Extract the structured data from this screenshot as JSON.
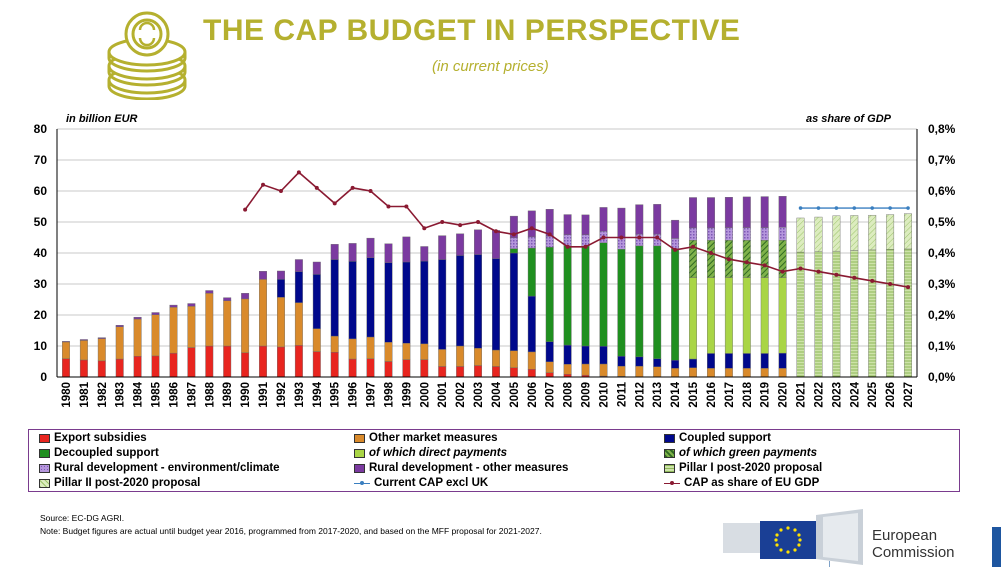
{
  "header": {
    "title": "THE CAP BUDGET IN PERSPECTIVE",
    "subtitle": "(in current prices)",
    "icon": "coins-icon"
  },
  "chart_data": {
    "type": "bar",
    "stacked": true,
    "left_axis_label": "in billion EUR",
    "right_axis_label": "as share of  GDP",
    "ylim": [
      0,
      80
    ],
    "y_ticks": [
      "0",
      "10",
      "20",
      "30",
      "40",
      "50",
      "60",
      "70",
      "80"
    ],
    "y2lim": [
      0,
      0.8
    ],
    "y2_ticks": [
      "0,0%",
      "0,1%",
      "0,2%",
      "0,3%",
      "0,4%",
      "0,5%",
      "0,6%",
      "0,7%",
      "0,8%"
    ],
    "grid": true,
    "categories": [
      "1980",
      "1981",
      "1982",
      "1983",
      "1984",
      "1985",
      "1986",
      "1987",
      "1988",
      "1989",
      "1990",
      "1991",
      "1992",
      "1993",
      "1994",
      "1995",
      "1996",
      "1997",
      "1998",
      "1999",
      "2000",
      "2001",
      "2002",
      "2003",
      "2004",
      "2005",
      "2006",
      "2007",
      "2008",
      "2009",
      "2010",
      "2011",
      "2012",
      "2013",
      "2014",
      "2015",
      "2016",
      "2017",
      "2018",
      "2019",
      "2020",
      "2021",
      "2022",
      "2023",
      "2024",
      "2025",
      "2026",
      "2027"
    ],
    "series": [
      {
        "name": "Export subsidies",
        "color": "#e8251f",
        "pattern": "solid",
        "values": [
          5.9,
          5.5,
          5.2,
          5.8,
          6.7,
          6.8,
          7.7,
          9.5,
          10.0,
          10.0,
          7.8,
          10.0,
          9.7,
          10.2,
          8.2,
          8.0,
          5.8,
          5.9,
          5.0,
          5.6,
          5.6,
          3.4,
          3.4,
          3.7,
          3.4,
          3.0,
          2.5,
          1.4,
          0.9,
          0.6,
          0.3,
          0.2,
          0.1,
          0.1,
          0.0,
          0.0,
          0.0,
          0.0,
          0.0,
          0.0,
          0,
          0,
          0,
          0,
          0,
          0,
          0,
          0
        ]
      },
      {
        "name": "Other market measures",
        "color": "#d98a2b",
        "pattern": "solid",
        "values": [
          5.4,
          6.3,
          7.2,
          10.4,
          12.0,
          13.3,
          14.8,
          13.3,
          17.0,
          14.6,
          17.4,
          21.5,
          16.0,
          13.8,
          7.4,
          5.2,
          6.5,
          7.0,
          6.2,
          5.3,
          5.1,
          5.5,
          6.6,
          5.6,
          5.3,
          5.5,
          5.6,
          3.5,
          3.2,
          3.6,
          3.9,
          3.3,
          3.4,
          3.2,
          2.8,
          3.0,
          2.8,
          2.8,
          2.8,
          2.8,
          2.8,
          0,
          0,
          0,
          0,
          0,
          0,
          0
        ]
      },
      {
        "name": "Coupled support",
        "color": "#00088c",
        "pattern": "solid",
        "values": [
          0,
          0,
          0,
          0,
          0,
          0,
          0,
          0,
          0,
          0,
          0,
          0,
          5.8,
          10.0,
          17.5,
          24.7,
          25.0,
          25.6,
          25.7,
          26.2,
          26.7,
          29.0,
          29.2,
          30.2,
          29.5,
          31.5,
          18.0,
          6.5,
          6.2,
          5.8,
          5.7,
          3.2,
          3.0,
          2.6,
          2.6,
          2.8,
          4.8,
          4.8,
          4.8,
          4.8,
          4.9,
          0,
          0,
          0,
          0,
          0,
          0,
          0
        ]
      },
      {
        "name": "Decoupled support",
        "color": "#1f8f1f",
        "pattern": "solid",
        "values": [
          0,
          0,
          0,
          0,
          0,
          0,
          0,
          0,
          0,
          0,
          0,
          0,
          0,
          0,
          0,
          0,
          0,
          0,
          0,
          0,
          0,
          0,
          0,
          0,
          0,
          1.4,
          15.5,
          30.5,
          32.0,
          32.2,
          33.4,
          34.5,
          35.8,
          36.4,
          36.0,
          0,
          0,
          0,
          0,
          0,
          0,
          0,
          0,
          0,
          0,
          0,
          0,
          0
        ]
      },
      {
        "name": "of which direct payments",
        "color": "#a9d545",
        "pattern": "solid",
        "values": [
          0,
          0,
          0,
          0,
          0,
          0,
          0,
          0,
          0,
          0,
          0,
          0,
          0,
          0,
          0,
          0,
          0,
          0,
          0,
          0,
          0,
          0,
          0,
          0,
          0,
          0,
          0,
          0,
          0,
          0,
          0,
          0,
          0,
          0,
          0,
          26.3,
          24.5,
          24.5,
          24.5,
          24.5,
          24.4,
          0,
          0,
          0,
          0,
          0,
          0,
          0
        ]
      },
      {
        "name": "of which green payments",
        "color": "#4a8a32",
        "pattern": "hatch",
        "values": [
          0,
          0,
          0,
          0,
          0,
          0,
          0,
          0,
          0,
          0,
          0,
          0,
          0,
          0,
          0,
          0,
          0,
          0,
          0,
          0,
          0,
          0,
          0,
          0,
          0,
          0,
          0,
          0,
          0,
          0,
          0,
          0,
          0,
          0,
          0,
          12.0,
          12.0,
          12.0,
          12.0,
          12.0,
          12.0,
          0,
          0,
          0,
          0,
          0,
          0,
          0
        ]
      },
      {
        "name": "Rural development - environment/climate",
        "color": "#a47bd1",
        "pattern": "dots",
        "values": [
          0,
          0,
          0,
          0,
          0,
          0,
          0,
          0,
          0,
          0,
          0,
          0,
          0,
          0,
          0,
          0,
          0,
          0,
          0,
          0,
          0,
          0,
          0,
          0,
          0,
          3.5,
          3.6,
          3.5,
          3.6,
          3.7,
          3.7,
          3.8,
          3.8,
          3.8,
          3.3,
          4.0,
          4.0,
          4.1,
          4.1,
          4.1,
          4.2,
          0,
          0,
          0,
          0,
          0,
          0,
          0
        ]
      },
      {
        "name": "Rural development - other measures",
        "color": "#7b3aa0",
        "pattern": "solid",
        "values": [
          0.2,
          0.3,
          0.3,
          0.5,
          0.6,
          0.7,
          0.7,
          0.9,
          0.9,
          1.0,
          1.8,
          2.6,
          2.7,
          3.9,
          4.0,
          4.9,
          5.8,
          6.3,
          6.1,
          8.1,
          4.7,
          7.7,
          7.0,
          8.0,
          9.1,
          7.0,
          8.4,
          8.7,
          6.5,
          6.4,
          7.7,
          9.5,
          9.5,
          9.6,
          5.9,
          9.8,
          9.8,
          9.8,
          9.9,
          10.0,
          10.0,
          0,
          0,
          0,
          0,
          0,
          0,
          0
        ]
      },
      {
        "name": "Pillar I post-2020 proposal",
        "color": "#b8d88c",
        "pattern": "hstripe",
        "values": [
          0,
          0,
          0,
          0,
          0,
          0,
          0,
          0,
          0,
          0,
          0,
          0,
          0,
          0,
          0,
          0,
          0,
          0,
          0,
          0,
          0,
          0,
          0,
          0,
          0,
          0,
          0,
          0,
          0,
          0,
          0,
          0,
          0,
          0,
          0,
          0,
          0,
          0,
          0,
          0,
          0,
          40.3,
          40.4,
          40.6,
          40.8,
          41.0,
          41.2,
          41.3
        ]
      },
      {
        "name": "Pillar II post-2020 proposal",
        "color": "#d3e6b0",
        "pattern": "hatch2",
        "values": [
          0,
          0,
          0,
          0,
          0,
          0,
          0,
          0,
          0,
          0,
          0,
          0,
          0,
          0,
          0,
          0,
          0,
          0,
          0,
          0,
          0,
          0,
          0,
          0,
          0,
          0,
          0,
          0,
          0,
          0,
          0,
          0,
          0,
          0,
          0,
          0,
          0,
          0,
          0,
          0,
          0,
          11.0,
          11.2,
          11.4,
          11.3,
          11.2,
          11.2,
          11.4
        ]
      }
    ],
    "lines": [
      {
        "name": "Current CAP excl UK",
        "color": "#3a7fc0",
        "axis": "left",
        "values": [
          null,
          null,
          null,
          null,
          null,
          null,
          null,
          null,
          null,
          null,
          null,
          null,
          null,
          null,
          null,
          null,
          null,
          null,
          null,
          null,
          null,
          null,
          null,
          null,
          null,
          null,
          null,
          null,
          null,
          null,
          null,
          null,
          null,
          null,
          null,
          null,
          null,
          null,
          null,
          null,
          null,
          54.5,
          54.5,
          54.5,
          54.5,
          54.5,
          54.5,
          54.5
        ]
      },
      {
        "name": "CAP as share of EU GDP",
        "color": "#8a1a32",
        "axis": "right",
        "values": [
          null,
          null,
          null,
          null,
          null,
          null,
          null,
          null,
          null,
          null,
          0.54,
          0.62,
          0.6,
          0.66,
          0.61,
          0.56,
          0.61,
          0.6,
          0.55,
          0.55,
          0.48,
          0.5,
          0.49,
          0.5,
          0.47,
          0.46,
          0.48,
          0.46,
          0.42,
          0.42,
          0.45,
          0.45,
          0.45,
          0.45,
          0.41,
          0.42,
          0.4,
          0.38,
          0.37,
          0.36,
          0.34,
          0.35,
          0.34,
          0.33,
          0.32,
          0.31,
          0.3,
          0.29
        ]
      }
    ]
  },
  "legend": {
    "items": [
      {
        "label": "Export subsidies",
        "italic": false
      },
      {
        "label": "Other market measures",
        "italic": false
      },
      {
        "label": "Coupled support",
        "italic": false
      },
      {
        "label": "Decoupled support",
        "italic": false
      },
      {
        "label": "of which direct payments",
        "italic": true
      },
      {
        "label": "of which green payments",
        "italic": true
      },
      {
        "label": "Rural development - environment/climate",
        "italic": false
      },
      {
        "label": "Rural development - other measures",
        "italic": false
      },
      {
        "label": "Pillar I post-2020 proposal",
        "italic": false
      },
      {
        "label": "Pillar II post-2020 proposal",
        "italic": false
      },
      {
        "label": "Current CAP excl UK",
        "italic": false
      },
      {
        "label": "CAP as share of EU GDP",
        "italic": false
      }
    ]
  },
  "footer": {
    "source": "Source: EC-DG AGRI.",
    "note": "Note: Budget figures are actual until budget year 2016, programmed from 2017-2020, and based on the MFF proposal for 2021-2027.",
    "logo_line1": "European",
    "logo_line2": "Commission",
    "logo_icon": "eu-flag-icon"
  }
}
